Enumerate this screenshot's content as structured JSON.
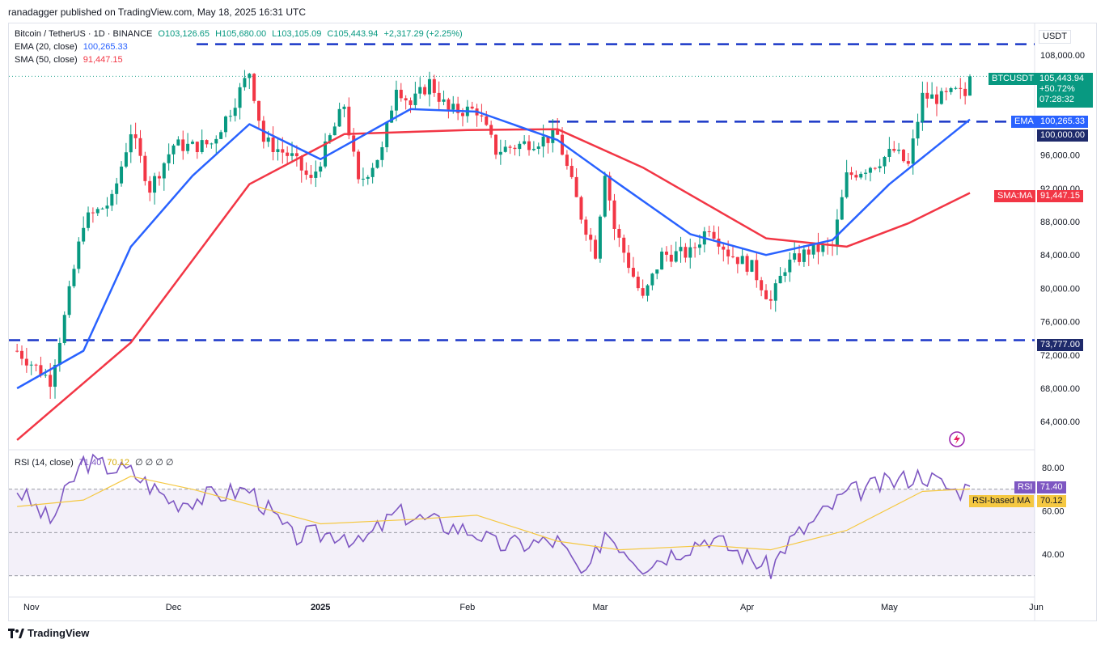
{
  "publisher": "ranadagger published on TradingView.com, May 18, 2025 16:31 UTC",
  "legend": {
    "symbol": "Bitcoin / TetherUS · 1D · BINANCE",
    "o": "O103,126.65",
    "h": "H105,680.00",
    "l": "L103,105.09",
    "c": "C105,443.94",
    "chg": "+2,317.29 (+2.25%)",
    "ema_label": "EMA (20, close)",
    "ema_value": "100,265.33",
    "sma_label": "SMA (50, close)",
    "sma_value": "91,447.15",
    "rsi_label": "RSI (14, close)",
    "rsi_value": "71.40",
    "rsi_ma_value": "70.12",
    "rsi_extra": "∅ ∅ ∅ ∅"
  },
  "tags": {
    "currency": "USDT",
    "btc_label": "BTCUSDT",
    "btc_price": "105,443.94",
    "btc_change": "+50.72%",
    "btc_countdown": "07:28:32",
    "ema_label": "EMA",
    "ema_price": "100,265.33",
    "level_100k": "100,000.00",
    "sma_label": "SMA:MA",
    "sma_price": "91,447.15",
    "level_73777": "73,777.00",
    "rsi_label": "RSI",
    "rsi_value": "71.40",
    "rsi_ma_label": "RSI-based MA",
    "rsi_ma_value": "70.12"
  },
  "footer": "TradingView",
  "colors": {
    "up": "#089981",
    "down": "#f23645",
    "ema": "#2962ff",
    "sma": "#f23645",
    "level": "#1a37c7",
    "rsi": "#7e57c2",
    "rsi_ma": "#f5c842"
  },
  "chart_data": [
    {
      "type": "candlestick",
      "title": "Bitcoin / TetherUS · 1D · BINANCE",
      "y_ticks": [
        "108,000.00",
        "100,000.00",
        "96,000.00",
        "92,000.00",
        "88,000.00",
        "84,000.00",
        "80,000.00",
        "76,000.00",
        "72,000.00",
        "68,000.00",
        "64,000.00"
      ],
      "x_ticks": [
        "Nov",
        "Dec",
        "2025",
        "Feb",
        "Mar",
        "Apr",
        "May",
        "Jun"
      ],
      "ylim": [
        61500,
        111000
      ],
      "levels": [
        109300,
        100000,
        73777
      ],
      "ohlc_sampled": [
        {
          "date": "2024-10-29",
          "close": 72500
        },
        {
          "date": "2024-11-05",
          "close": 69000
        },
        {
          "date": "2024-11-08",
          "close": 76500
        },
        {
          "date": "2024-11-12",
          "close": 88000
        },
        {
          "date": "2024-11-18",
          "close": 90500
        },
        {
          "date": "2024-11-22",
          "close": 98900
        },
        {
          "date": "2024-11-26",
          "close": 92000
        },
        {
          "date": "2024-12-01",
          "close": 97200
        },
        {
          "date": "2024-12-05",
          "close": 97000
        },
        {
          "date": "2024-12-09",
          "close": 97400
        },
        {
          "date": "2024-12-13",
          "close": 101400
        },
        {
          "date": "2024-12-17",
          "close": 106000
        },
        {
          "date": "2024-12-20",
          "close": 97700
        },
        {
          "date": "2024-12-26",
          "close": 95700
        },
        {
          "date": "2024-12-30",
          "close": 92800
        },
        {
          "date": "2025-01-06",
          "close": 102000
        },
        {
          "date": "2025-01-09",
          "close": 92500
        },
        {
          "date": "2025-01-14",
          "close": 96500
        },
        {
          "date": "2025-01-17",
          "close": 104500
        },
        {
          "date": "2025-01-20",
          "close": 102000
        },
        {
          "date": "2025-01-24",
          "close": 104700
        },
        {
          "date": "2025-01-28",
          "close": 101300
        },
        {
          "date": "2025-02-03",
          "close": 101400
        },
        {
          "date": "2025-02-07",
          "close": 96500
        },
        {
          "date": "2025-02-14",
          "close": 97500
        },
        {
          "date": "2025-02-20",
          "close": 98300
        },
        {
          "date": "2025-02-25",
          "close": 88700
        },
        {
          "date": "2025-02-28",
          "close": 84300
        },
        {
          "date": "2025-03-02",
          "close": 94200
        },
        {
          "date": "2025-03-04",
          "close": 87200
        },
        {
          "date": "2025-03-10",
          "close": 78600
        },
        {
          "date": "2025-03-14",
          "close": 84000
        },
        {
          "date": "2025-03-20",
          "close": 84200
        },
        {
          "date": "2025-03-24",
          "close": 87500
        },
        {
          "date": "2025-03-28",
          "close": 84300
        },
        {
          "date": "2025-04-02",
          "close": 82500
        },
        {
          "date": "2025-04-06",
          "close": 78400
        },
        {
          "date": "2025-04-09",
          "close": 82600
        },
        {
          "date": "2025-04-14",
          "close": 84500
        },
        {
          "date": "2025-04-19",
          "close": 85000
        },
        {
          "date": "2025-04-22",
          "close": 93400
        },
        {
          "date": "2025-04-28",
          "close": 95000
        },
        {
          "date": "2025-05-02",
          "close": 96500
        },
        {
          "date": "2025-05-05",
          "close": 94700
        },
        {
          "date": "2025-05-08",
          "close": 103000
        },
        {
          "date": "2025-05-12",
          "close": 102800
        },
        {
          "date": "2025-05-15",
          "close": 103500
        },
        {
          "date": "2025-05-17",
          "close": 103126.65
        },
        {
          "date": "2025-05-18",
          "open": 103126.65,
          "high": 105680,
          "low": 103105.09,
          "close": 105443.94
        }
      ],
      "ema20": [
        {
          "date": "2024-10-29",
          "value": 68000
        },
        {
          "date": "2024-11-12",
          "value": 72500
        },
        {
          "date": "2024-11-22",
          "value": 85000
        },
        {
          "date": "2024-12-05",
          "value": 93500
        },
        {
          "date": "2024-12-17",
          "value": 99700
        },
        {
          "date": "2025-01-01",
          "value": 95500
        },
        {
          "date": "2025-01-20",
          "value": 101500
        },
        {
          "date": "2025-02-03",
          "value": 101200
        },
        {
          "date": "2025-02-20",
          "value": 97800
        },
        {
          "date": "2025-03-05",
          "value": 92500
        },
        {
          "date": "2025-03-20",
          "value": 86500
        },
        {
          "date": "2025-04-05",
          "value": 84000
        },
        {
          "date": "2025-04-19",
          "value": 85800
        },
        {
          "date": "2025-05-01",
          "value": 92500
        },
        {
          "date": "2025-05-18",
          "value": 100265.33
        }
      ],
      "sma50": [
        {
          "date": "2024-10-29",
          "value": 61800
        },
        {
          "date": "2024-11-22",
          "value": 73500
        },
        {
          "date": "2024-12-17",
          "value": 92500
        },
        {
          "date": "2025-01-06",
          "value": 98500
        },
        {
          "date": "2025-02-01",
          "value": 99000
        },
        {
          "date": "2025-02-20",
          "value": 99100
        },
        {
          "date": "2025-03-10",
          "value": 94500
        },
        {
          "date": "2025-04-05",
          "value": 86000
        },
        {
          "date": "2025-04-22",
          "value": 85000
        },
        {
          "date": "2025-05-05",
          "value": 87800
        },
        {
          "date": "2025-05-18",
          "value": 91447.15
        }
      ]
    },
    {
      "type": "line",
      "title": "RSI (14, close)",
      "y_ticks": [
        "80.00",
        "60.00",
        "40.00"
      ],
      "ylim": [
        23,
        86
      ],
      "bands": [
        70,
        50,
        30
      ],
      "rsi": [
        {
          "date": "2024-10-29",
          "value": 70
        },
        {
          "date": "2024-11-05",
          "value": 55
        },
        {
          "date": "2024-11-12",
          "value": 83
        },
        {
          "date": "2024-11-22",
          "value": 78
        },
        {
          "date": "2024-12-01",
          "value": 64
        },
        {
          "date": "2024-12-17",
          "value": 70
        },
        {
          "date": "2024-12-26",
          "value": 48
        },
        {
          "date": "2025-01-06",
          "value": 50
        },
        {
          "date": "2025-01-09",
          "value": 44
        },
        {
          "date": "2025-01-17",
          "value": 59
        },
        {
          "date": "2025-02-03",
          "value": 50
        },
        {
          "date": "2025-02-07",
          "value": 44
        },
        {
          "date": "2025-02-20",
          "value": 46
        },
        {
          "date": "2025-02-26",
          "value": 28
        },
        {
          "date": "2025-03-02",
          "value": 51
        },
        {
          "date": "2025-03-10",
          "value": 35
        },
        {
          "date": "2025-03-24",
          "value": 48
        },
        {
          "date": "2025-04-06",
          "value": 33
        },
        {
          "date": "2025-04-09",
          "value": 44
        },
        {
          "date": "2025-04-22",
          "value": 68
        },
        {
          "date": "2025-05-08",
          "value": 77
        },
        {
          "date": "2025-05-15",
          "value": 69
        },
        {
          "date": "2025-05-18",
          "value": 71.4
        }
      ],
      "rsi_ma": [
        {
          "date": "2024-10-29",
          "value": 62
        },
        {
          "date": "2024-11-12",
          "value": 65
        },
        {
          "date": "2024-11-22",
          "value": 76
        },
        {
          "date": "2024-12-05",
          "value": 70
        },
        {
          "date": "2025-01-01",
          "value": 54
        },
        {
          "date": "2025-01-20",
          "value": 56
        },
        {
          "date": "2025-02-03",
          "value": 58
        },
        {
          "date": "2025-02-20",
          "value": 46
        },
        {
          "date": "2025-03-05",
          "value": 42
        },
        {
          "date": "2025-03-24",
          "value": 44
        },
        {
          "date": "2025-04-06",
          "value": 42
        },
        {
          "date": "2025-04-22",
          "value": 51
        },
        {
          "date": "2025-05-08",
          "value": 69
        },
        {
          "date": "2025-05-18",
          "value": 70.12
        }
      ]
    }
  ]
}
